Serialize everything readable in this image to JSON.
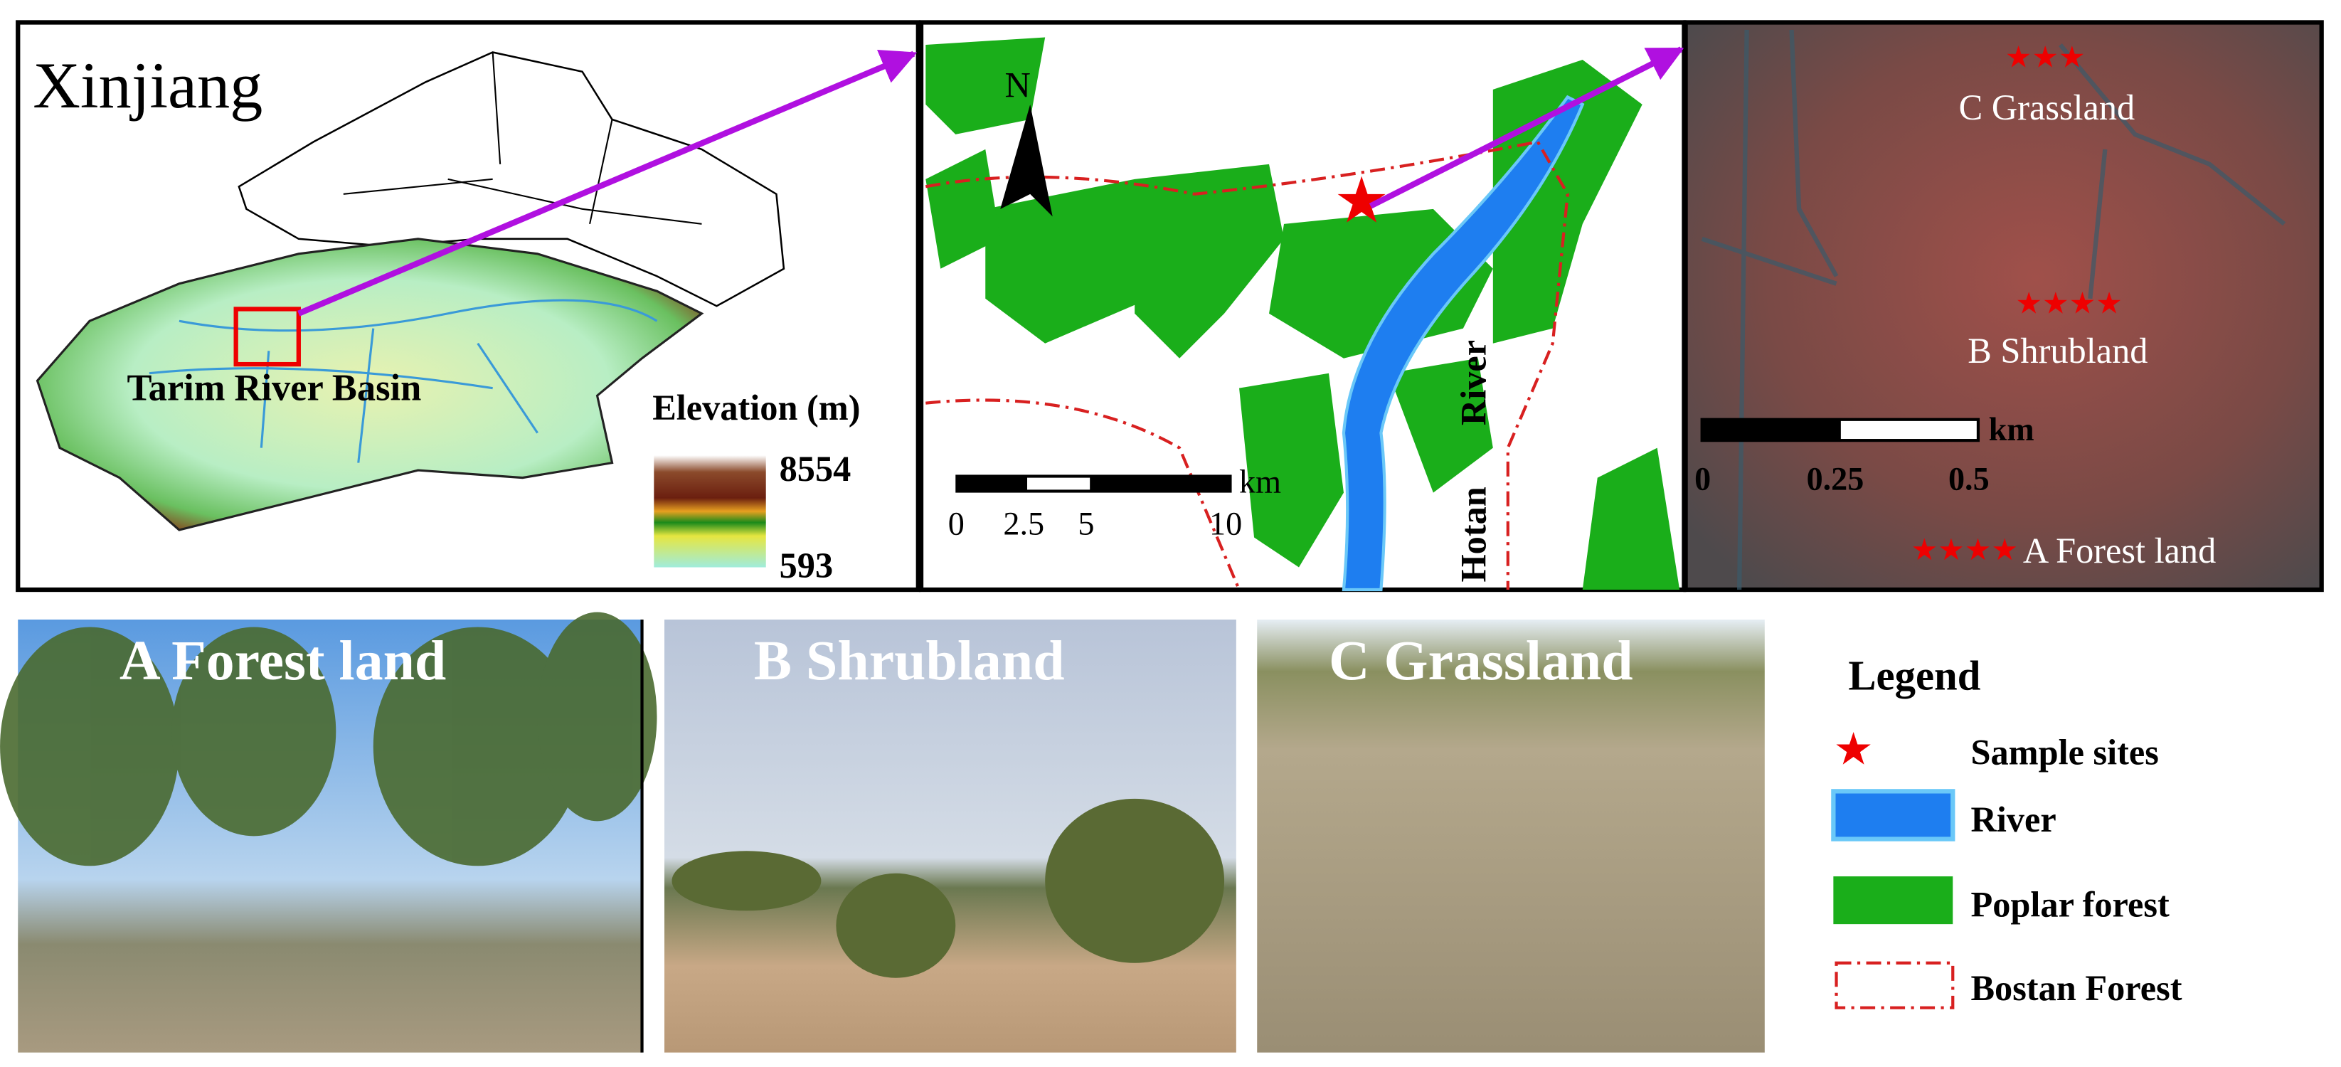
{
  "panel_map": {
    "title": "Xinjiang",
    "basin_label": "Tarim River Basin",
    "elevation": {
      "title": "Elevation (m)",
      "max": "8554",
      "min": "593"
    }
  },
  "panel_area": {
    "north": "N",
    "river_label": [
      "Hotan",
      "River"
    ],
    "scale": {
      "labels": [
        "0",
        "2.5",
        "5",
        "10"
      ],
      "unit": "km"
    }
  },
  "panel_sites": {
    "sites": [
      "C Grassland",
      "B Shrubland",
      "A Forest land"
    ],
    "scale": {
      "labels": [
        "0",
        "0.25",
        "0.5"
      ],
      "unit": "km"
    }
  },
  "photos": [
    "A  Forest land",
    "B  Shrubland",
    "C  Grassland"
  ],
  "legend": {
    "title": "Legend",
    "items": [
      "Sample sites",
      "River",
      "Poplar forest",
      "Bostan Forest"
    ]
  }
}
